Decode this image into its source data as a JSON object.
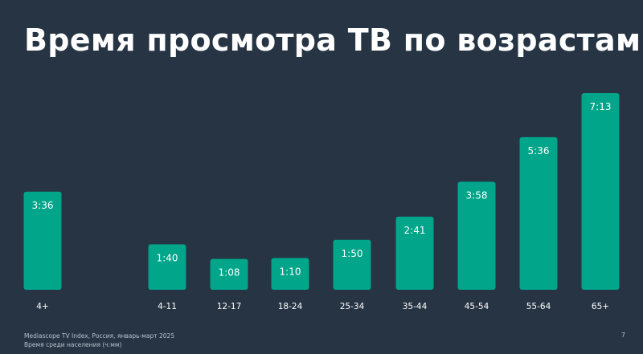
{
  "title": "Время просмотра ТВ по возрастам",
  "footer": {
    "source": "Mediascope TV Index, Россия, январь-март 2025",
    "note": "Время среди населения (ч:мм)"
  },
  "page_number": "7",
  "colors": {
    "background": "#263444",
    "bar": "#00a58a",
    "text": "#ffffff"
  },
  "chart_data": {
    "type": "bar",
    "title": "Время просмотра ТВ по возрастам",
    "categories": [
      "4+",
      "4-11",
      "12-17",
      "18-24",
      "25-34",
      "35-44",
      "45-54",
      "55-64",
      "65+"
    ],
    "values": [
      216,
      100,
      68,
      70,
      110,
      161,
      238,
      336,
      433
    ],
    "value_labels": [
      "3:36",
      "1:40",
      "1:08",
      "1:10",
      "1:50",
      "2:41",
      "3:58",
      "5:36",
      "7:13"
    ],
    "unit": "minutes",
    "ylim": [
      0,
      433
    ],
    "grid": false,
    "legend": "none"
  }
}
